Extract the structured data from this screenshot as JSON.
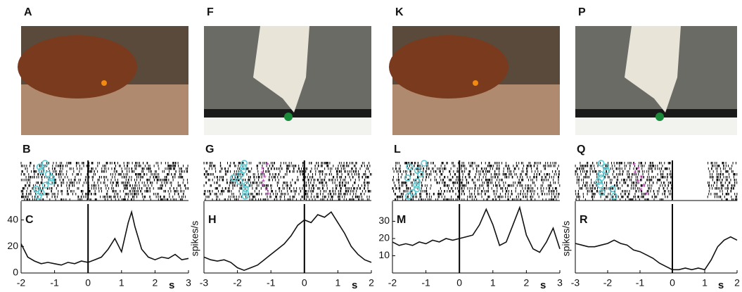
{
  "photo_labels": [
    "A",
    "F",
    "K",
    "P"
  ],
  "raster_labels": [
    "B",
    "G",
    "L",
    "Q"
  ],
  "chart_data": [
    {
      "type": "line",
      "panel_label": "C",
      "xlabel": "s",
      "x": [
        -2,
        -1.8,
        -1.6,
        -1.4,
        -1.2,
        -1,
        -0.8,
        -0.6,
        -0.4,
        -0.2,
        0,
        0.2,
        0.4,
        0.6,
        0.8,
        1,
        1.2,
        1.3,
        1.4,
        1.6,
        1.8,
        2,
        2.2,
        2.4,
        2.6,
        2.8,
        3
      ],
      "values": [
        22,
        12,
        9,
        7,
        8,
        7,
        6,
        8,
        7,
        9,
        8,
        10,
        12,
        18,
        26,
        16,
        38,
        46,
        35,
        18,
        12,
        10,
        12,
        11,
        14,
        10,
        11
      ],
      "color": "#111111",
      "xlim": [
        -2,
        3
      ],
      "ylim": [
        0,
        52
      ],
      "xticks": [
        -2,
        -1,
        0,
        1,
        2,
        3
      ],
      "yticks": [
        0,
        20,
        40
      ]
    },
    {
      "type": "line",
      "panel_label": "H",
      "xlabel": "s",
      "ylabel": "spikes/s",
      "x": [
        -3,
        -2.8,
        -2.6,
        -2.4,
        -2.2,
        -2,
        -1.8,
        -1.6,
        -1.4,
        -1.2,
        -1,
        -0.8,
        -0.6,
        -0.4,
        -0.2,
        0,
        0.2,
        0.4,
        0.6,
        0.8,
        1,
        1.2,
        1.4,
        1.6,
        1.8,
        2
      ],
      "values": [
        12,
        10,
        9,
        10,
        8,
        4,
        2,
        4,
        6,
        10,
        14,
        18,
        22,
        28,
        36,
        40,
        38,
        44,
        42,
        46,
        38,
        30,
        20,
        14,
        10,
        8
      ],
      "color": "#111111",
      "xlim": [
        -3,
        2
      ],
      "ylim": [
        0,
        52
      ],
      "xticks": [
        -3,
        -2,
        -1,
        0,
        1,
        2
      ],
      "yticks": []
    },
    {
      "type": "line",
      "panel_label": "M",
      "xlabel": "s",
      "x": [
        -2,
        -1.8,
        -1.6,
        -1.4,
        -1.2,
        -1,
        -0.8,
        -0.6,
        -0.4,
        -0.2,
        0,
        0.2,
        0.4,
        0.6,
        0.8,
        1,
        1.2,
        1.4,
        1.6,
        1.8,
        2,
        2.2,
        2.4,
        2.6,
        2.8,
        3
      ],
      "values": [
        18,
        16,
        17,
        16,
        18,
        17,
        19,
        18,
        20,
        19,
        20,
        21,
        22,
        28,
        37,
        28,
        16,
        18,
        28,
        38,
        22,
        14,
        12,
        18,
        26,
        14
      ],
      "color": "#111111",
      "xlim": [
        -2,
        3
      ],
      "ylim": [
        0,
        40
      ],
      "xticks": [
        -2,
        -1,
        0,
        1,
        2,
        3
      ],
      "yticks": [
        10,
        20,
        30
      ]
    },
    {
      "type": "line",
      "panel_label": "R",
      "xlabel": "s",
      "ylabel": "spikes/s",
      "x": [
        -3,
        -2.8,
        -2.6,
        -2.4,
        -2.2,
        -2,
        -1.8,
        -1.6,
        -1.4,
        -1.2,
        -1,
        -0.8,
        -0.6,
        -0.4,
        -0.2,
        0,
        0.2,
        0.4,
        0.6,
        0.8,
        1,
        1.2,
        1.4,
        1.6,
        1.8,
        2
      ],
      "values": [
        16,
        15,
        14,
        14,
        15,
        16,
        18,
        16,
        15,
        12,
        11,
        9,
        7,
        4,
        2,
        0,
        0,
        1,
        0,
        1,
        0,
        6,
        14,
        18,
        20,
        18
      ],
      "color": "#111111",
      "xlim": [
        -3,
        2
      ],
      "ylim": [
        -2,
        40
      ],
      "xticks": [
        -3,
        -2,
        -1,
        0,
        1,
        2
      ],
      "yticks": []
    }
  ]
}
